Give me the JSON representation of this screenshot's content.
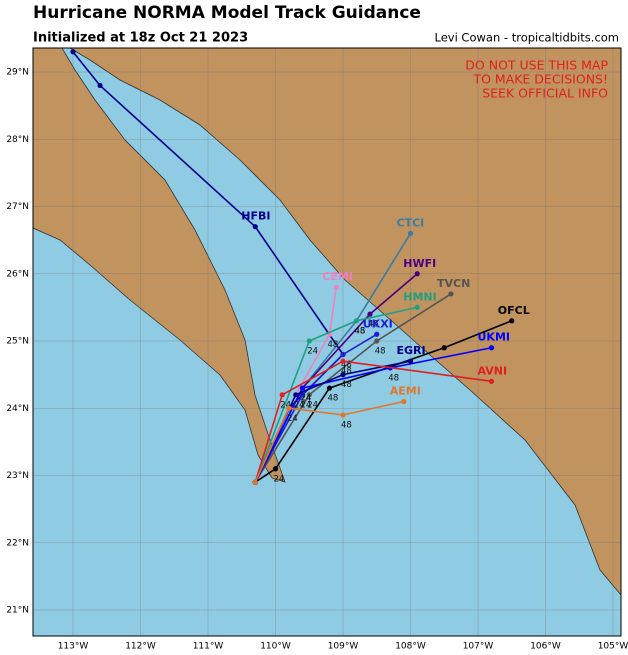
{
  "title": "Hurricane NORMA Model Track Guidance",
  "subtitle": "Initialized at 18z Oct 21 2023",
  "credit": "Levi Cowan - tropicaltidbits.com",
  "warning": [
    "DO NOT USE THIS MAP",
    "TO MAKE DECISIONS!",
    "SEEK OFFICIAL INFO"
  ],
  "lon_ticks": [
    {
      "value": -113,
      "label": "113°W"
    },
    {
      "value": -112,
      "label": "112°W"
    },
    {
      "value": -111,
      "label": "111°W"
    },
    {
      "value": -110,
      "label": "110°W"
    },
    {
      "value": -109,
      "label": "109°W"
    },
    {
      "value": -108,
      "label": "108°W"
    },
    {
      "value": -107,
      "label": "107°W"
    },
    {
      "value": -106,
      "label": "106°W"
    },
    {
      "value": -105,
      "label": "105°W"
    }
  ],
  "lat_ticks": [
    {
      "value": 29,
      "label": "29°N"
    },
    {
      "value": 28,
      "label": "28°N"
    },
    {
      "value": 27,
      "label": "27°N"
    },
    {
      "value": 26,
      "label": "26°N"
    },
    {
      "value": 25,
      "label": "25°N"
    },
    {
      "value": 24,
      "label": "24°N"
    },
    {
      "value": 23,
      "label": "23°N"
    },
    {
      "value": 22,
      "label": "22°N"
    },
    {
      "value": 21,
      "label": "21°N"
    }
  ],
  "tracks": [
    {
      "name": "HFBI",
      "color": "#00008b",
      "lon": [
        -110.3,
        -109.8,
        -109.0,
        -110.3,
        -112.6,
        -113.0
      ],
      "lat": [
        22.9,
        24.0,
        24.8,
        26.7,
        28.8,
        29.3
      ]
    },
    {
      "name": "CTCI",
      "color": "#3a7ca5",
      "lon": [
        -110.3,
        -109.6,
        -108.8,
        -108.0
      ],
      "lat": [
        22.9,
        24.3,
        25.3,
        26.6
      ],
      "time_labels": [
        "24",
        "48"
      ]
    },
    {
      "name": "CEMI",
      "color": "#f080c0",
      "lon": [
        -110.3,
        -109.7,
        -109.2,
        -109.1
      ],
      "lat": [
        22.9,
        24.2,
        25.1,
        25.8
      ],
      "time_labels": [
        "24",
        "48"
      ]
    },
    {
      "name": "HWFI",
      "color": "#4b0082",
      "lon": [
        -110.3,
        -109.6,
        -108.6,
        -107.9
      ],
      "lat": [
        22.9,
        24.3,
        25.4,
        26.0
      ],
      "time_labels": [
        "24",
        "48"
      ]
    },
    {
      "name": "TVCN",
      "color": "#555555",
      "lon": [
        -110.3,
        -109.5,
        -108.5,
        -107.4
      ],
      "lat": [
        22.9,
        24.2,
        25.0,
        25.7
      ],
      "time_labels": [
        "24",
        "48"
      ]
    },
    {
      "name": "HMNI",
      "color": "#20a080",
      "lon": [
        -110.3,
        -109.5,
        -108.8,
        -107.9
      ],
      "lat": [
        22.9,
        25.0,
        25.3,
        25.5
      ],
      "time_labels": [
        "24",
        "48"
      ]
    },
    {
      "name": "OFCL",
      "color": "#000000",
      "lon": [
        -110.3,
        -110.0,
        -109.2,
        -107.5,
        -106.5
      ],
      "lat": [
        22.9,
        23.1,
        24.3,
        24.9,
        25.3
      ],
      "time_labels": [
        "24",
        "48"
      ]
    },
    {
      "name": "UKXI",
      "color": "#2020d0",
      "lon": [
        -110.3,
        -109.6,
        -109.0,
        -108.5
      ],
      "lat": [
        22.9,
        24.2,
        24.8,
        25.1
      ],
      "time_labels": [
        "24",
        "48"
      ]
    },
    {
      "name": "UKMI",
      "color": "#0000ff",
      "lon": [
        -110.3,
        -109.6,
        -108.3,
        -106.8
      ],
      "lat": [
        22.9,
        24.3,
        24.6,
        24.9
      ],
      "time_labels": [
        "24",
        "48"
      ]
    },
    {
      "name": "EGRI",
      "color": "#000080",
      "lon": [
        -110.3,
        -109.7,
        -109.0,
        -108.0
      ],
      "lat": [
        22.9,
        24.2,
        24.5,
        24.7
      ],
      "time_labels": [
        "24",
        "48"
      ]
    },
    {
      "name": "AVNI",
      "color": "#e02020",
      "lon": [
        -110.3,
        -109.9,
        -109.0,
        -106.8
      ],
      "lat": [
        22.9,
        24.2,
        24.7,
        24.4
      ],
      "time_labels": [
        "24",
        "48"
      ]
    },
    {
      "name": "AEMI",
      "color": "#e07830",
      "lon": [
        -110.3,
        -109.8,
        -109.0,
        -108.1
      ],
      "lat": [
        22.9,
        24.0,
        23.9,
        24.1
      ],
      "time_labels": [
        "24",
        "48"
      ]
    }
  ]
}
